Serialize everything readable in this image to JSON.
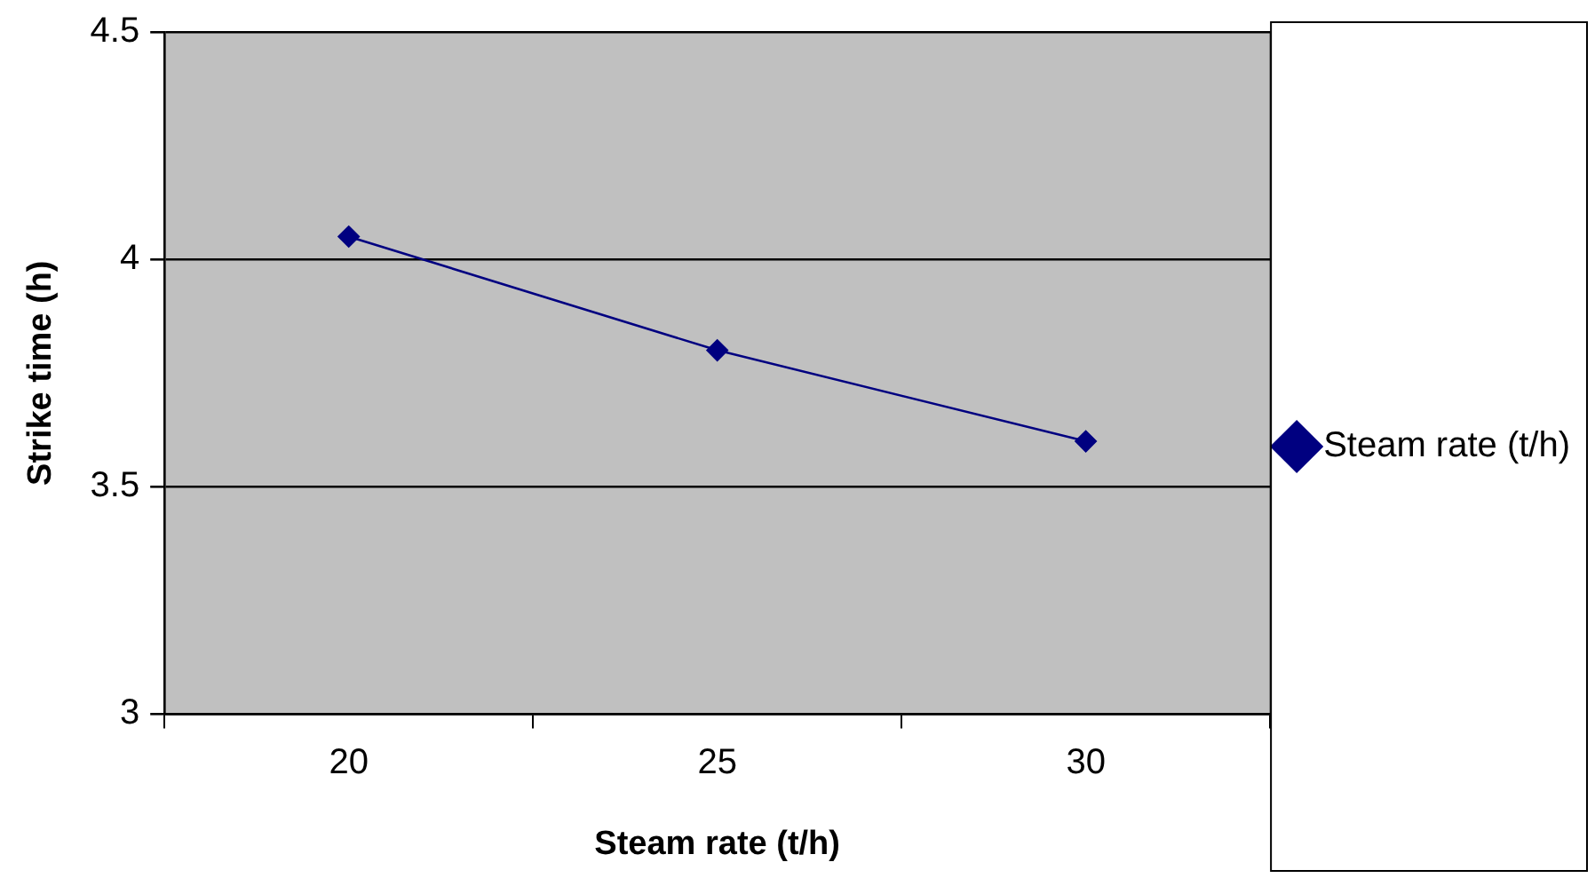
{
  "chart_data": {
    "type": "line",
    "xlabel": "Steam rate (t/h)",
    "ylabel": "Strike time (h)",
    "categories": [
      "20",
      "25",
      "30"
    ],
    "series": [
      {
        "name": "Steam rate (t/h)",
        "color": "#000080",
        "values": [
          4.05,
          3.8,
          3.6
        ]
      }
    ],
    "ylim": [
      3,
      4.5
    ],
    "yticks": [
      3,
      3.5,
      4,
      4.5
    ],
    "grid": "y",
    "legend": "right",
    "marker": "diamond",
    "line_style": "solid"
  }
}
